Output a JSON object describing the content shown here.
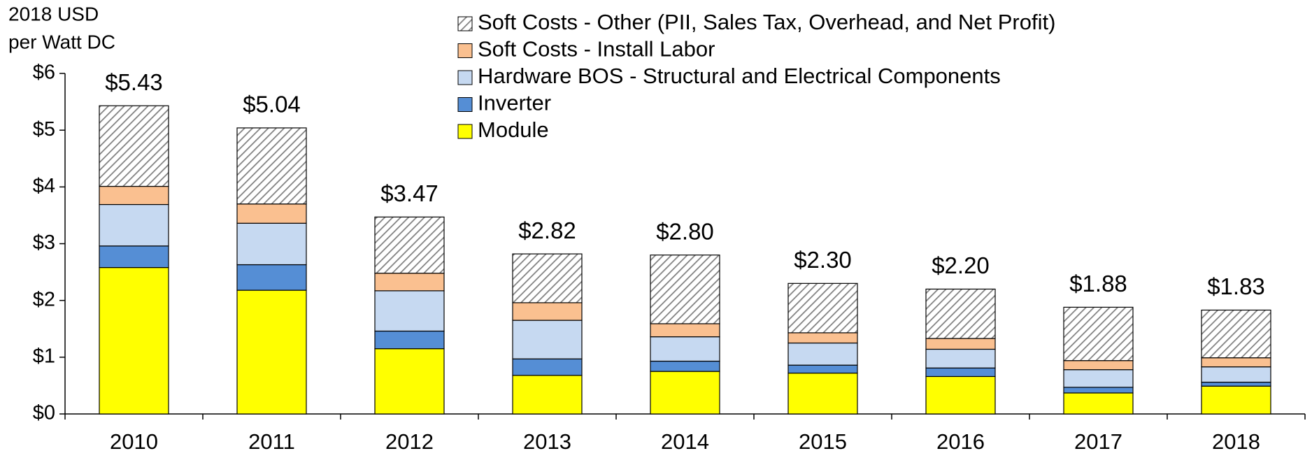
{
  "chart_data": {
    "type": "stacked_bar",
    "y_label": [
      "2018 USD",
      "per Watt DC"
    ],
    "categories": [
      "2010",
      "2011",
      "2012",
      "2013",
      "2014",
      "2015",
      "2016",
      "2017",
      "2018"
    ],
    "series": [
      {
        "name": "Module",
        "color": "#ffff00",
        "values": [
          2.58,
          2.18,
          1.15,
          0.68,
          0.75,
          0.72,
          0.66,
          0.37,
          0.49
        ]
      },
      {
        "name": "Inverter",
        "color": "#558ed5",
        "values": [
          0.38,
          0.45,
          0.31,
          0.29,
          0.18,
          0.14,
          0.15,
          0.1,
          0.07
        ]
      },
      {
        "name": "Hardware BOS - Structural and Electrical Components",
        "color": "#c6d9f1",
        "values": [
          0.73,
          0.73,
          0.71,
          0.68,
          0.43,
          0.39,
          0.33,
          0.31,
          0.27
        ]
      },
      {
        "name": "Soft Costs - Install Labor",
        "color": "#fac090",
        "values": [
          0.32,
          0.34,
          0.31,
          0.31,
          0.23,
          0.18,
          0.19,
          0.16,
          0.16
        ]
      },
      {
        "name": "Soft Costs - Other (PII, Sales Tax, Overhead, and Net Profit)",
        "color": "#ffffff",
        "hatch": true,
        "values": [
          1.42,
          1.34,
          0.99,
          0.86,
          1.21,
          0.87,
          0.87,
          0.94,
          0.84
        ]
      }
    ],
    "totals": {
      "values": [
        5.43,
        5.04,
        3.47,
        2.82,
        2.8,
        2.3,
        2.2,
        1.88,
        1.83
      ],
      "value_labels": [
        "$5.43",
        "$5.04",
        "$3.47",
        "$2.82",
        "$2.80",
        "$2.30",
        "$2.20",
        "$1.88",
        "$1.83"
      ]
    },
    "ylim": [
      0,
      6
    ],
    "yticks": [
      {
        "value": 0,
        "label": "$0"
      },
      {
        "value": 1,
        "label": "$1"
      },
      {
        "value": 2,
        "label": "$2"
      },
      {
        "value": 3,
        "label": "$3"
      },
      {
        "value": 4,
        "label": "$4"
      },
      {
        "value": 5,
        "label": "$5"
      },
      {
        "value": 6,
        "label": "$6"
      }
    ],
    "grid": false,
    "legend": "top"
  }
}
